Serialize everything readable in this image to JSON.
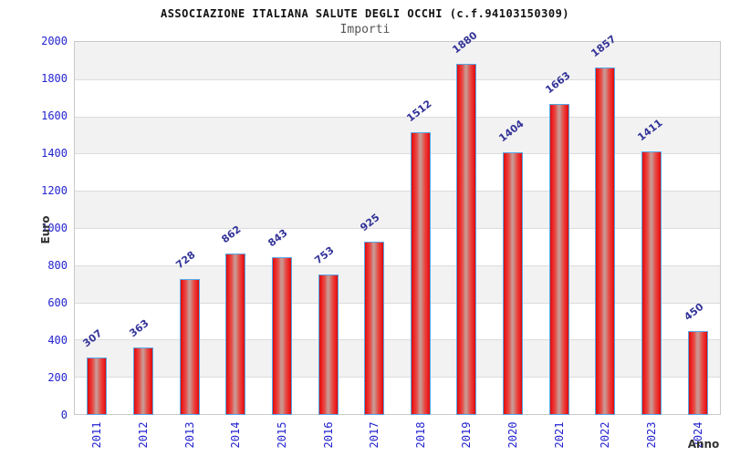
{
  "chart_data": {
    "type": "bar",
    "title": "ASSOCIAZIONE ITALIANA SALUTE DEGLI OCCHI (c.f.94103150309)",
    "subtitle": "Importi",
    "xlabel": "Anno",
    "ylabel": "Euro",
    "categories": [
      "2011",
      "2012",
      "2013",
      "2014",
      "2015",
      "2016",
      "2017",
      "2018",
      "2019",
      "2020",
      "2021",
      "2022",
      "2023",
      "2024"
    ],
    "values": [
      307,
      363,
      728,
      862,
      843,
      753,
      925,
      1512,
      1880,
      1404,
      1663,
      1857,
      1411,
      450
    ],
    "ylim": [
      0,
      2000
    ],
    "ytick_step": 200,
    "grid": true,
    "legend": "none",
    "band_fill_alternating": true,
    "colors": {
      "bar_fill_edge": "#ee1111",
      "bar_fill_center": "#cc938e",
      "bar_border": "#58a7e7",
      "tick_label": "#2323cf",
      "value_label": "#333399",
      "axis_title": "#333333",
      "title_text": "#111111",
      "subtitle_text": "#555555",
      "band_gray": "#f2f2f2",
      "gridline": "#dcdcdc",
      "plot_border": "#c9c9c9",
      "background": "#ffffff"
    }
  }
}
